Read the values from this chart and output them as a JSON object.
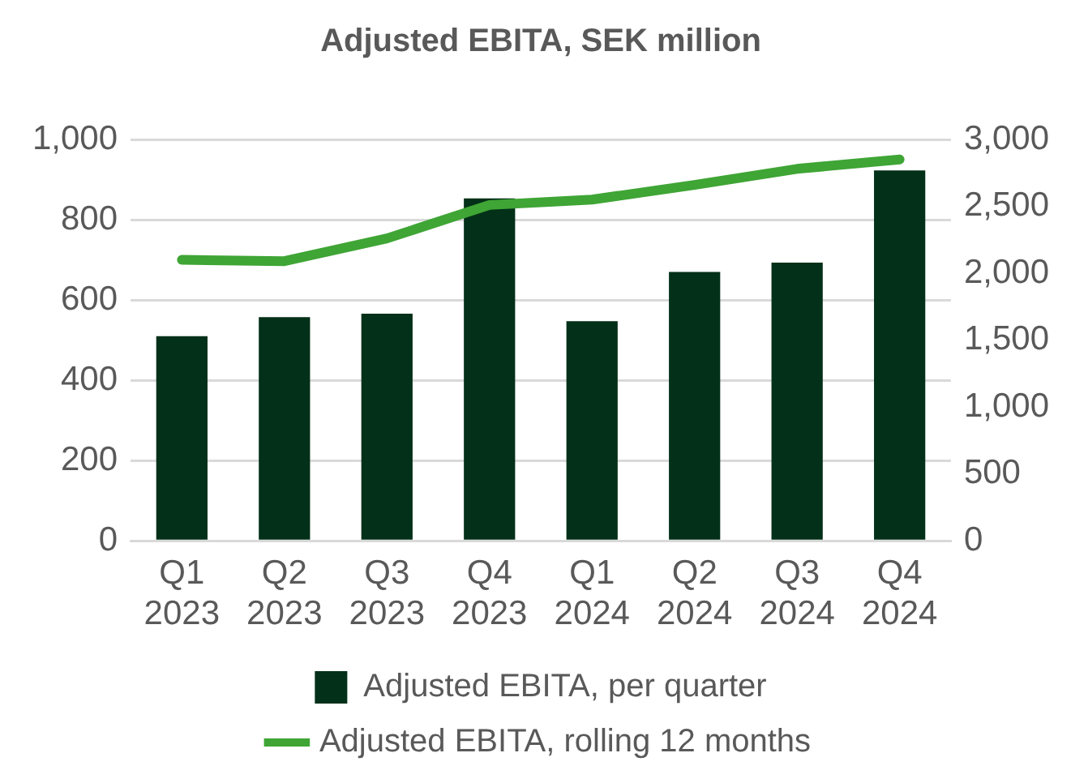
{
  "chart_data": {
    "type": "bar",
    "title": "Adjusted EBITA, SEK million",
    "categories": [
      "Q1\n2023",
      "Q2\n2023",
      "Q3\n2023",
      "Q4\n2023",
      "Q1\n2024",
      "Q2\n2024",
      "Q3\n2024",
      "Q4\n2024"
    ],
    "series": [
      {
        "name": "Adjusted EBITA, per quarter",
        "color": "#033018",
        "values": [
          510,
          557,
          566,
          853,
          547,
          670,
          693,
          923
        ]
      },
      {
        "name": "Adjusted EBITA, rolling 12 months",
        "type": "line",
        "axis": "y2",
        "color": "#3fa535",
        "values": [
          2100,
          2090,
          2260,
          2510,
          2550,
          2660,
          2780,
          2850
        ]
      }
    ],
    "ylim": [
      0,
      1000
    ],
    "yticks": [
      0,
      200,
      400,
      600,
      800,
      {
        "value": 1000,
        "label": "1,000"
      }
    ],
    "y2lim": [
      0,
      3000
    ],
    "y2ticks": [
      0,
      500,
      {
        "value": 1000,
        "label": "1,000"
      },
      {
        "value": 1500,
        "label": "1,500"
      },
      {
        "value": 2000,
        "label": "2,000"
      },
      {
        "value": 2500,
        "label": "2,500"
      },
      {
        "value": 3000,
        "label": "3,000"
      }
    ],
    "grid": "y",
    "legend": "bottom",
    "marker": "none"
  }
}
